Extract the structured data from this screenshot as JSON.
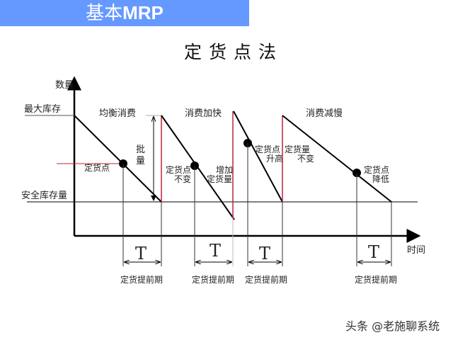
{
  "banner": {
    "prefix": "基本",
    "bold": "MRP",
    "color": "#6699ff"
  },
  "title": "定货点法",
  "axes": {
    "y_label": "数量",
    "x_label": "时间"
  },
  "levels": {
    "max": "最大库存",
    "safety": "安全库存量"
  },
  "phases": [
    "均衡消费",
    "消费加快",
    "消费减慢"
  ],
  "annotations": {
    "reorder_point": "定货点",
    "batch": [
      "批",
      "量"
    ],
    "rp_unchanged": [
      "定货点",
      "不变"
    ],
    "qty_increase": [
      "增加",
      "定货量"
    ],
    "rp_raised": [
      "定货点",
      "升高"
    ],
    "qty_unchanged": [
      "定货量",
      "不变"
    ],
    "rp_lowered": [
      "定货点",
      "降低"
    ]
  },
  "lead_time": {
    "symbol": "T",
    "label": "定货提前期"
  },
  "colors": {
    "red": "#c0203a",
    "line": "#000000"
  },
  "watermark": "头条 @老施聊系统"
}
